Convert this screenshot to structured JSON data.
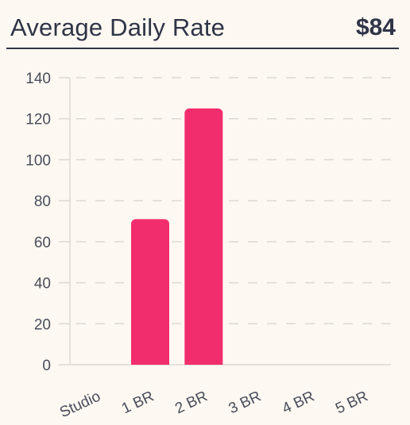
{
  "card": {
    "title": "Average Daily Rate",
    "value": "$84"
  },
  "colors": {
    "background": "#fdf8f1",
    "bar": "#f22d6e",
    "text": "#2f3447",
    "grid": "#dcd8d2"
  },
  "chart_data": {
    "type": "bar",
    "title": "",
    "xlabel": "",
    "ylabel": "",
    "categories": [
      "Studio",
      "1 BR",
      "2 BR",
      "3 BR",
      "4 BR",
      "5 BR"
    ],
    "values": [
      0,
      71,
      125,
      0,
      0,
      0
    ],
    "ylim": [
      0,
      140
    ],
    "yticks": [
      0,
      20,
      40,
      60,
      80,
      100,
      120,
      140
    ],
    "ytick_labels": [
      "0",
      "20",
      "40",
      "60",
      "80",
      "100",
      "120",
      "140"
    ],
    "grid": true,
    "legend": "none"
  }
}
